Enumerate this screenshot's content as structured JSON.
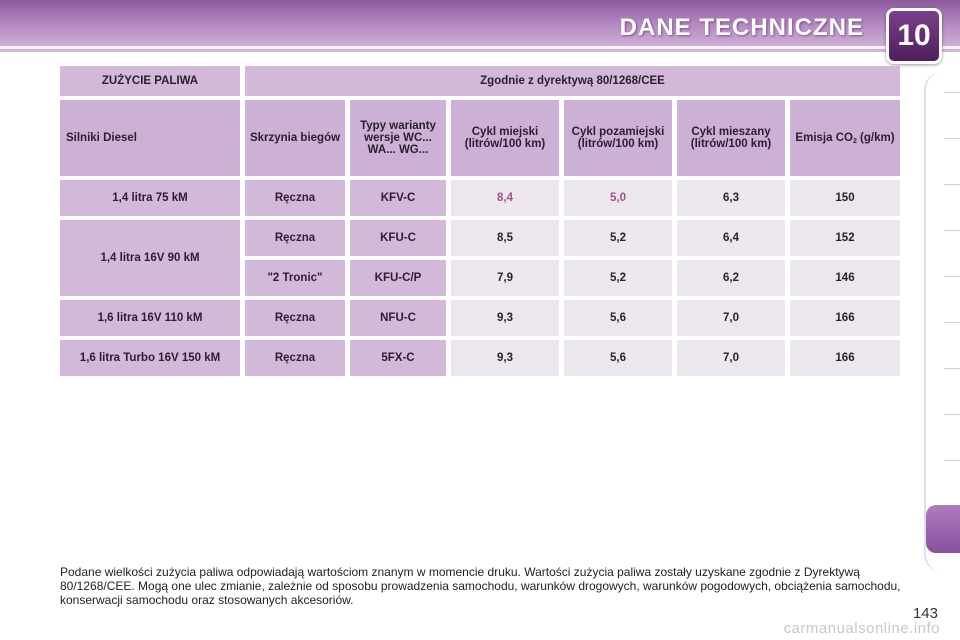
{
  "header": {
    "title": "DANE TECHNICZNE",
    "chapter": "10"
  },
  "table": {
    "title_left": "ZUŻYCIE PALIWA",
    "title_right": "Zgodnie z dyrektywą 80/1268/CEE",
    "columns": {
      "engine": "Silniki Diesel",
      "gearbox": "Skrzynia biegów",
      "types": "Typy warianty wersje WC... WA... WG...",
      "urban": "Cykl miejski (litrów/100 km)",
      "extra_urban": "Cykl pozamiejski (litrów/100 km)",
      "combined": "Cykl mieszany (litrów/100 km)",
      "co2_prefix": "Emisja CO",
      "co2_sub": "2",
      "co2_suffix": " (g/km)"
    },
    "rows": [
      {
        "engine": "1,4 litra 75 kM",
        "gearbox": "Ręczna",
        "type": "KFV-C",
        "urban": "8,4",
        "extra_urban": "5,0",
        "combined": "6,3",
        "co2": "150"
      },
      {
        "engine": "1,4 litra 16V 90 kM",
        "gearbox": "Ręczna",
        "type": "KFU-C",
        "urban": "8,5",
        "extra_urban": "5,2",
        "combined": "6,4",
        "co2": "152"
      },
      {
        "gearbox": "\"2 Tronic\"",
        "type": "KFU-C/P",
        "urban": "7,9",
        "extra_urban": "5,2",
        "combined": "6,2",
        "co2": "146"
      },
      {
        "engine": "1,6 litra 16V 110 kM",
        "gearbox": "Ręczna",
        "type": "NFU-C",
        "urban": "9,3",
        "extra_urban": "5,6",
        "combined": "7,0",
        "co2": "166"
      },
      {
        "engine": "1,6 litra Turbo 16V 150 kM",
        "gearbox": "Ręczna",
        "type": "5FX-C",
        "urban": "9,3",
        "extra_urban": "5,6",
        "combined": "7,0",
        "co2": "166"
      }
    ]
  },
  "note": "Podane wielkości zużycia paliwa odpowiadają wartościom znanym w momencie druku. Wartości zużycia paliwa zostały uzyskane zgodnie z Dyrektywą 80/1268/CEE. Mogą one ulec zmianie, zależnie od sposobu prowadzenia samochodu, warunków drogowych, warunków pogodowych, obciążenia samochodu, konserwacji samochodu oraz stosowanych akcesoriów.",
  "page_number": "143",
  "watermark": "carmanualsonline.info",
  "colors": {
    "accent": "#8a4f9e",
    "header_cell": "#d2b8d9",
    "value_cell": "#ece6ee",
    "highlight": "#b5509a"
  }
}
